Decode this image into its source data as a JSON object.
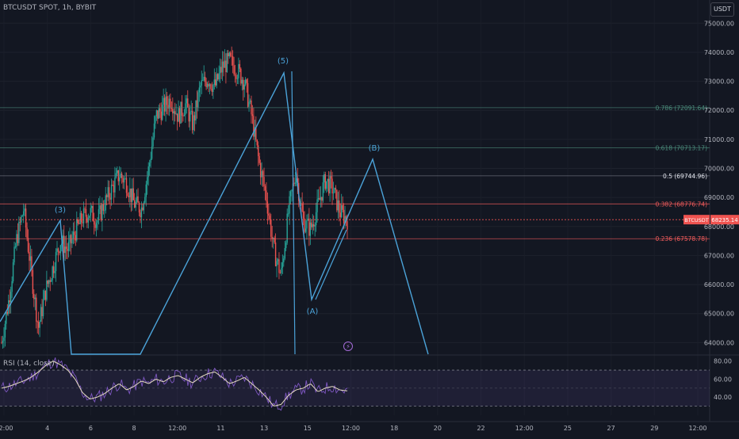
{
  "header": {
    "title": "BTCUSDT SPOT, 1h, BYBIT",
    "currency": "USDT"
  },
  "rsi": {
    "title": "RSI (14, close)",
    "levels": [
      80,
      60,
      40
    ],
    "upper": 70,
    "lower": 30
  },
  "price_axis": {
    "ticks": [
      "75000.00",
      "74000.00",
      "73000.00",
      "72000.00",
      "71000.00",
      "70000.00",
      "69000.00",
      "68000.00",
      "67000.00",
      "66000.00",
      "65000.00",
      "64000.00"
    ],
    "current": {
      "label": "BTCUSDT",
      "value": "68235.14"
    }
  },
  "time_axis": {
    "ticks": [
      "12:00",
      "4",
      "6",
      "8",
      "12:00",
      "11",
      "13",
      "15",
      "12:00",
      "18",
      "20",
      "22",
      "12:00",
      "25",
      "27",
      "29",
      "12:00"
    ]
  },
  "fib_levels": [
    {
      "text": "0.786 (72091.64)",
      "price": 72091.64,
      "color": "#4a8a7a"
    },
    {
      "text": "0.618 (70713.17)",
      "price": 70713.17,
      "color": "#4a8a7a"
    },
    {
      "text": "0.5 (69744.96)",
      "price": 69744.96,
      "color": "#e0e3eb"
    },
    {
      "text": "0.382 (68776.74)",
      "price": 68776.74,
      "color": "#f05b5b"
    },
    {
      "text": "0.236 (67578.78)",
      "price": 67578.78,
      "color": "#f05b5b"
    }
  ],
  "wave_labels": [
    "(3)",
    "(5)",
    "(A)",
    "(B)"
  ],
  "chart_data": {
    "type": "candlestick",
    "title": "BTCUSDT SPOT, 1h, BYBIT",
    "ylim": [
      63600,
      75800
    ],
    "price_ticks": [
      75000,
      74000,
      73000,
      72000,
      71000,
      70000,
      69000,
      68000,
      67000,
      66000,
      65000,
      64000
    ],
    "last_price": 68235.14,
    "elliott_wave_points": [
      {
        "label": "(3)",
        "price": 68700
      },
      {
        "label": "(5)",
        "price": 74000
      },
      {
        "label": "(A)",
        "price": 65600
      },
      {
        "label": "(B)",
        "price": 70700
      }
    ],
    "fibonacci": [
      {
        "ratio": 0.786,
        "price": 72091.64
      },
      {
        "ratio": 0.618,
        "price": 70713.17
      },
      {
        "ratio": 0.5,
        "price": 69744.96
      },
      {
        "ratio": 0.382,
        "price": 68776.74
      },
      {
        "ratio": 0.236,
        "price": 67578.78
      }
    ],
    "close_path": [
      64000,
      65500,
      67500,
      68600,
      66500,
      64500,
      65800,
      66600,
      67500,
      67200,
      67800,
      68300,
      68500,
      68200,
      68800,
      69300,
      69800,
      69500,
      68800,
      68600,
      70000,
      71800,
      72100,
      72400,
      71800,
      72200,
      71500,
      72800,
      73100,
      72800,
      73500,
      73700,
      73400,
      73000,
      71800,
      70200,
      69000,
      67200,
      66300,
      68500,
      69900,
      68200,
      67900,
      68700,
      69600,
      69300,
      68500,
      68235
    ],
    "rsi": {
      "ylim": [
        20,
        85
      ],
      "ticks": [
        80,
        60,
        40
      ],
      "band": [
        30,
        70
      ],
      "values": [
        50,
        52,
        55,
        58,
        62,
        68,
        75,
        80,
        76,
        70,
        60,
        45,
        38,
        40,
        44,
        50,
        55,
        48,
        52,
        58,
        55,
        60,
        57,
        62,
        64,
        60,
        56,
        62,
        66,
        68,
        62,
        55,
        58,
        62,
        55,
        48,
        40,
        30,
        32,
        42,
        48,
        50,
        55,
        46,
        50,
        52,
        48,
        47
      ]
    }
  }
}
